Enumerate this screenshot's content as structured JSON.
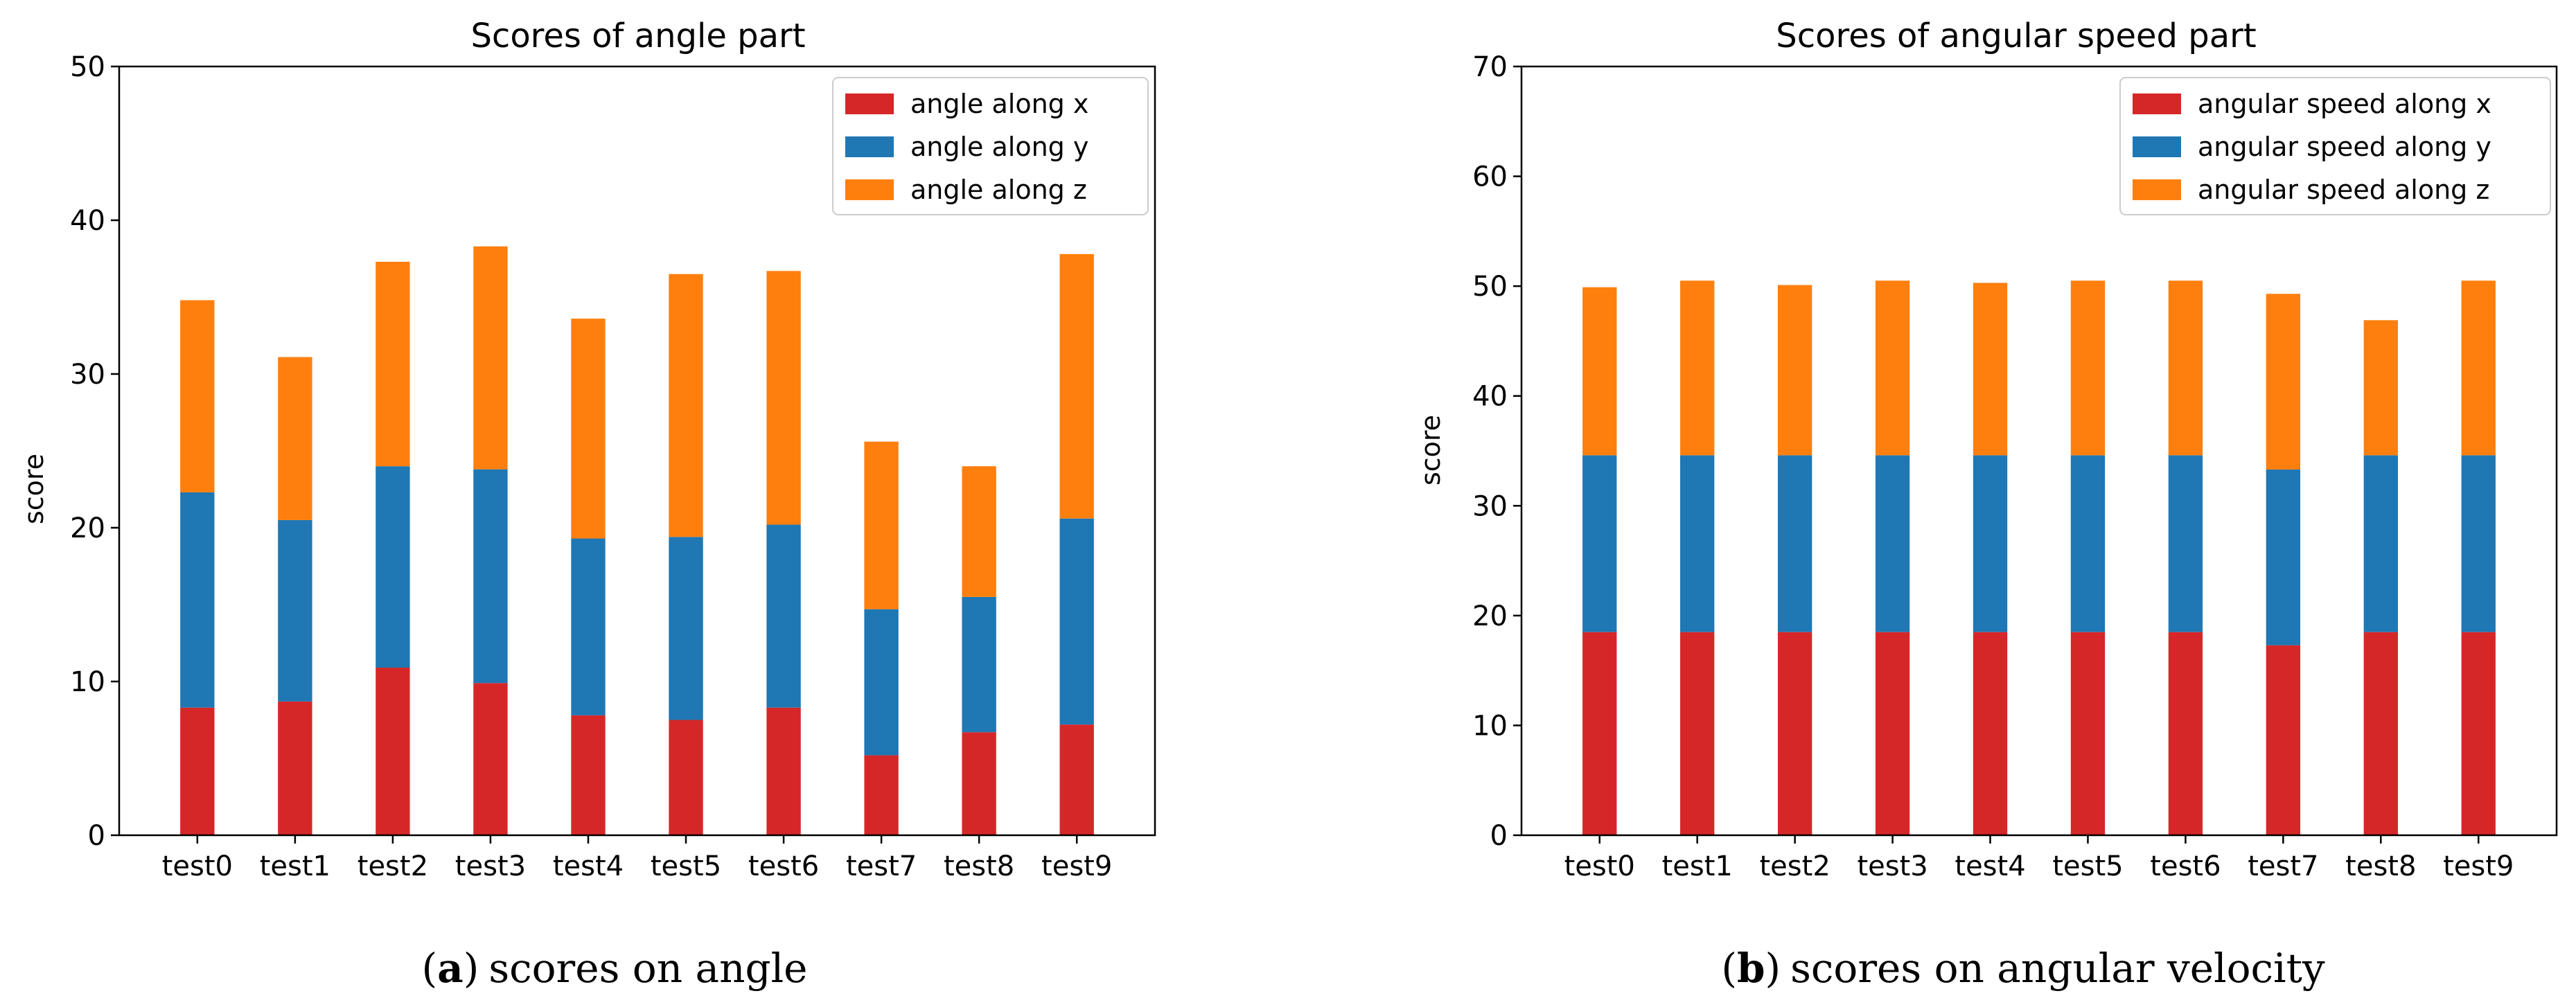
{
  "chart_data": [
    {
      "type": "bar",
      "stacked": true,
      "title": "Scores of angle part",
      "xlabel": "",
      "ylabel": "score",
      "ylim": [
        0,
        50
      ],
      "yticks": [
        "0",
        "10",
        "20",
        "30",
        "40",
        "50"
      ],
      "categories": [
        "test0",
        "test1",
        "test2",
        "test3",
        "test4",
        "test5",
        "test6",
        "test7",
        "test8",
        "test9"
      ],
      "series": [
        {
          "name": "angle along x",
          "color": "#d62728",
          "values": [
            8.3,
            8.7,
            10.9,
            9.9,
            7.8,
            7.5,
            8.3,
            5.2,
            6.7,
            7.2
          ]
        },
        {
          "name": "angle along y",
          "color": "#1f77b4",
          "values": [
            14.0,
            11.8,
            13.1,
            13.9,
            11.5,
            11.9,
            11.9,
            9.5,
            8.8,
            13.4
          ]
        },
        {
          "name": "angle along z",
          "color": "#ff7f0e",
          "values": [
            12.5,
            10.6,
            13.3,
            14.5,
            14.3,
            17.1,
            16.5,
            10.9,
            8.5,
            17.2
          ]
        }
      ],
      "legend_position": "top-right",
      "caption_label": "a",
      "caption_text": "scores on angle"
    },
    {
      "type": "bar",
      "stacked": true,
      "title": "Scores of angular speed part",
      "xlabel": "",
      "ylabel": "score",
      "ylim": [
        0,
        70
      ],
      "yticks": [
        "0",
        "10",
        "20",
        "30",
        "40",
        "50",
        "60",
        "70"
      ],
      "categories": [
        "test0",
        "test1",
        "test2",
        "test3",
        "test4",
        "test5",
        "test6",
        "test7",
        "test8",
        "test9"
      ],
      "series": [
        {
          "name": "angular speed along x",
          "color": "#d62728",
          "values": [
            18.5,
            18.5,
            18.5,
            18.5,
            18.5,
            18.5,
            18.5,
            17.3,
            18.5,
            18.5
          ]
        },
        {
          "name": "angular speed along y",
          "color": "#1f77b4",
          "values": [
            16.1,
            16.1,
            16.1,
            16.1,
            16.1,
            16.1,
            16.1,
            16.0,
            16.1,
            16.1
          ]
        },
        {
          "name": "angular speed along z",
          "color": "#ff7f0e",
          "values": [
            15.3,
            15.9,
            15.5,
            15.9,
            15.7,
            15.9,
            15.9,
            16.0,
            12.3,
            15.9
          ]
        }
      ],
      "legend_position": "top-right",
      "caption_label": "b",
      "caption_text": "scores on angular velocity"
    }
  ]
}
